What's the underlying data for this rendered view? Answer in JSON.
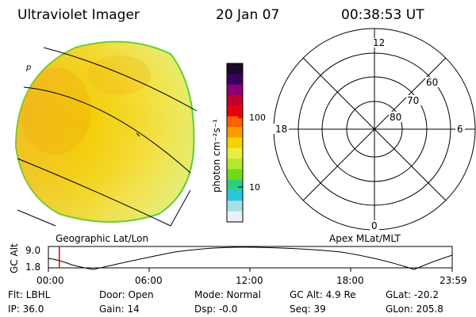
{
  "header": {
    "instrument": "Ultraviolet Imager",
    "date": "20 Jan 07",
    "time": "00:38:53 UT"
  },
  "colorbar": {
    "label": "photon cm⁻²s⁻¹",
    "ticks": [
      "100",
      "10"
    ],
    "colors": [
      "#1c0a2a",
      "#3a0060",
      "#8a0070",
      "#c00030",
      "#e80010",
      "#ff6000",
      "#ff9a00",
      "#f2d200",
      "#ecec40",
      "#b8e82a",
      "#6fdc1a",
      "#2ad080",
      "#28c8d8",
      "#a8e0e8",
      "#e8f2f4"
    ]
  },
  "left_panel": {
    "label": "Geographic Lat/Lon",
    "marker": "p"
  },
  "polar_plot": {
    "label": "Apex MLat/MLT",
    "mlt_labels": [
      "12",
      "18",
      "6",
      "0"
    ],
    "lat_labels": [
      "60",
      "70",
      "80"
    ]
  },
  "altitude_plot": {
    "ylabel": "GC Alt",
    "yticks": [
      "9.0",
      "1.8"
    ],
    "xticks": [
      "00:00",
      "06:00",
      "12:00",
      "18:00",
      "23:59"
    ],
    "current_time_fraction": 0.027
  },
  "info": {
    "flt": "Flt: LBHL",
    "ip": "IP: 36.0",
    "door": "Door: Open",
    "gain": "Gain: 14",
    "mode": "Mode: Normal",
    "dsp": "Dsp:   -0.0",
    "gc_alt": "GC Alt: 4.9 Re",
    "seq": "Seq: 39",
    "glat": "GLat: -20.2",
    "glon": "GLon: 205.8"
  }
}
